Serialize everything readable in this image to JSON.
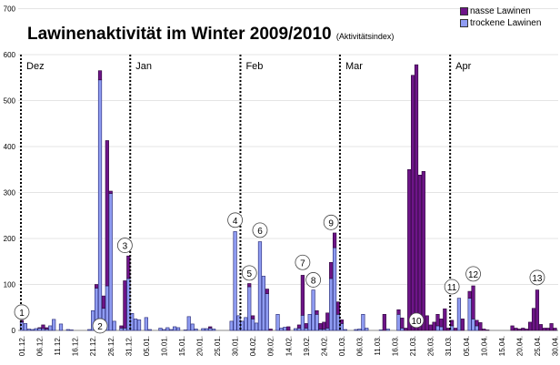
{
  "chart_data": {
    "type": "bar",
    "stacked": true,
    "title": "Lawinenaktivität im Winter 2009/2010",
    "subtitle": "(Aktivitätsindex)",
    "xlabel": "",
    "ylabel": "",
    "ylim": [
      0,
      700
    ],
    "yticks": [
      0,
      100,
      200,
      300,
      400,
      500,
      600,
      700
    ],
    "grid": true,
    "legend_position": "top-right",
    "start_date": "01.12.2009",
    "tick_labels": [
      "01.12.",
      "06.12.",
      "11.12.",
      "16.12.",
      "21.12.",
      "26.12.",
      "31.12.",
      "05.01.",
      "10.01.",
      "15.01.",
      "20.01.",
      "25.01.",
      "30.01.",
      "04.02.",
      "09.02.",
      "14.02.",
      "19.02.",
      "24.02.",
      "01.03.",
      "06.03.",
      "11.03.",
      "16.03.",
      "21.03.",
      "26.03.",
      "31.03.",
      "05.04.",
      "10.04.",
      "15.04.",
      "20.04.",
      "25.04.",
      "30.04."
    ],
    "months": [
      {
        "label": "Dez",
        "day": 0
      },
      {
        "label": "Jan",
        "day": 31
      },
      {
        "label": "Feb",
        "day": 62
      },
      {
        "label": "Mar",
        "day": 90
      },
      {
        "label": "Apr",
        "day": 121
      }
    ],
    "series": [
      {
        "name": "nasse Lawinen",
        "color": "#6e1488",
        "values": [
          4,
          0,
          0,
          0,
          0,
          1,
          8,
          3,
          0,
          0,
          0,
          0,
          0,
          0,
          0,
          0,
          0,
          0,
          0,
          0,
          0,
          8,
          20,
          27,
          316,
          5,
          0,
          0,
          5,
          103,
          49,
          0,
          0,
          0,
          0,
          0,
          0,
          0,
          0,
          0,
          0,
          0,
          0,
          0,
          0,
          0,
          0,
          0,
          0,
          0,
          0,
          0,
          0,
          3,
          0,
          0,
          0,
          0,
          0,
          0,
          0,
          0,
          0,
          0,
          7,
          7,
          0,
          0,
          0,
          10,
          3,
          0,
          0,
          0,
          0,
          8,
          0,
          0,
          7,
          87,
          10,
          0,
          0,
          8,
          12,
          15,
          33,
          35,
          32,
          27,
          8,
          0,
          0,
          0,
          0,
          0,
          0,
          0,
          0,
          0,
          0,
          0,
          35,
          0,
          0,
          0,
          10,
          22,
          5,
          350,
          555,
          578,
          338,
          346,
          32,
          12,
          18,
          25,
          17,
          47,
          5,
          12,
          5,
          0,
          25,
          0,
          15,
          72,
          12,
          17,
          3,
          1,
          0,
          0,
          0,
          0,
          0,
          0,
          10,
          5,
          3,
          5,
          3,
          18,
          48,
          88,
          13,
          5,
          5,
          15,
          5
        ]
      },
      {
        "name": "trockene Lawinen",
        "color": "#8f9cf2",
        "values": [
          18,
          15,
          3,
          2,
          4,
          5,
          4,
          3,
          10,
          24,
          0,
          14,
          0,
          2,
          1,
          0,
          0,
          0,
          0,
          2,
          43,
          92,
          545,
          48,
          97,
          298,
          20,
          0,
          5,
          5,
          113,
          37,
          25,
          23,
          0,
          28,
          2,
          0,
          0,
          5,
          2,
          6,
          2,
          8,
          6,
          0,
          1,
          30,
          14,
          3,
          0,
          4,
          4,
          5,
          3,
          0,
          0,
          0,
          0,
          20,
          215,
          32,
          20,
          28,
          95,
          25,
          16,
          193,
          118,
          80,
          0,
          0,
          35,
          5,
          7,
          0,
          0,
          4,
          5,
          33,
          5,
          35,
          88,
          35,
          3,
          3,
          5,
          113,
          180,
          35,
          15,
          2,
          0,
          0,
          2,
          3,
          35,
          5,
          0,
          0,
          0,
          1,
          0,
          3,
          0,
          0,
          35,
          5,
          0,
          0,
          0,
          0,
          0,
          0,
          0,
          0,
          0,
          10,
          8,
          0,
          0,
          10,
          0,
          70,
          0,
          0,
          70,
          25,
          10,
          0,
          0,
          0,
          0,
          0,
          0,
          0,
          0,
          0,
          0,
          0,
          0,
          0,
          0,
          0,
          0,
          0,
          0,
          0,
          0,
          0,
          0
        ]
      }
    ],
    "annotations": [
      {
        "label": "1",
        "day": 0,
        "y": 40
      },
      {
        "label": "2",
        "day": 22,
        "y": 10
      },
      {
        "label": "3",
        "day": 29,
        "y": 185
      },
      {
        "label": "4",
        "day": 60,
        "y": 240
      },
      {
        "label": "5",
        "day": 64,
        "y": 125
      },
      {
        "label": "6",
        "day": 67,
        "y": 218
      },
      {
        "label": "7",
        "day": 79,
        "y": 148
      },
      {
        "label": "8",
        "day": 82,
        "y": 110
      },
      {
        "label": "9",
        "day": 87,
        "y": 235
      },
      {
        "label": "10",
        "day": 111,
        "y": 22
      },
      {
        "label": "11",
        "day": 121,
        "y": 95
      },
      {
        "label": "12",
        "day": 127,
        "y": 123
      },
      {
        "label": "13",
        "day": 145,
        "y": 115
      }
    ]
  }
}
